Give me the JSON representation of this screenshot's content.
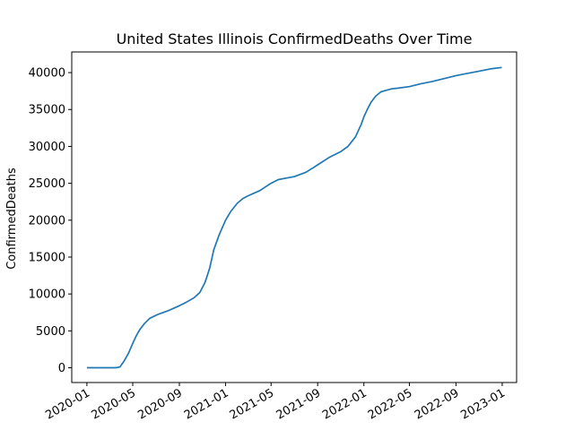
{
  "chart_data": {
    "type": "line",
    "title": "United States Illinois ConfirmedDeaths Over Time",
    "xlabel": "",
    "ylabel": "ConfirmedDeaths",
    "grid": false,
    "xlim": [
      "2019-11-22",
      "2023-02-08"
    ],
    "ylim": [
      -2000,
      42800
    ],
    "x_ticks": [
      "2020-01-01",
      "2020-05-01",
      "2020-09-01",
      "2021-01-01",
      "2021-05-01",
      "2021-09-01",
      "2022-01-01",
      "2022-05-01",
      "2022-09-01",
      "2023-01-01"
    ],
    "x_tick_labels": [
      "2020-01",
      "2020-05",
      "2020-09",
      "2021-01",
      "2021-05",
      "2021-09",
      "2022-01",
      "2022-05",
      "2022-09",
      "2023-01"
    ],
    "x_tick_rotation_deg": 30,
    "y_ticks": [
      0,
      5000,
      10000,
      15000,
      20000,
      25000,
      30000,
      35000,
      40000
    ],
    "y_tick_labels": [
      "0",
      "5000",
      "10000",
      "15000",
      "20000",
      "25000",
      "30000",
      "35000",
      "40000"
    ],
    "line_color": "#1f77b4",
    "series": [
      {
        "x": [
          "2020-01-01",
          "2020-02-15",
          "2020-03-17",
          "2020-03-28",
          "2020-04-08",
          "2020-04-20",
          "2020-05-01",
          "2020-05-10",
          "2020-05-20",
          "2020-06-01",
          "2020-06-15",
          "2020-07-01",
          "2020-07-10",
          "2020-08-01",
          "2020-09-01",
          "2020-09-20",
          "2020-10-10",
          "2020-10-25",
          "2020-11-08",
          "2020-11-20",
          "2020-12-01",
          "2020-12-15",
          "2021-01-01",
          "2021-01-15",
          "2021-02-01",
          "2021-02-15",
          "2021-03-01",
          "2021-04-01",
          "2021-05-01",
          "2021-05-20",
          "2021-06-10",
          "2021-07-01",
          "2021-08-01",
          "2021-08-20",
          "2021-09-01",
          "2021-10-01",
          "2021-11-01",
          "2021-11-20",
          "2021-12-10",
          "2021-12-25",
          "2022-01-01",
          "2022-01-10",
          "2022-01-20",
          "2022-02-01",
          "2022-02-15",
          "2022-03-01",
          "2022-03-15",
          "2022-04-01",
          "2022-05-01",
          "2022-06-01",
          "2022-07-01",
          "2022-08-01",
          "2022-09-01",
          "2022-10-01",
          "2022-11-01",
          "2022-12-01",
          "2022-12-31"
        ],
        "values": [
          0,
          0,
          0,
          100,
          900,
          2000,
          3300,
          4300,
          5200,
          6000,
          6700,
          7100,
          7300,
          7700,
          8400,
          8900,
          9500,
          10200,
          11600,
          13500,
          16000,
          18000,
          20000,
          21200,
          22300,
          22900,
          23300,
          24000,
          25000,
          25500,
          25700,
          25900,
          26500,
          27100,
          27500,
          28500,
          29300,
          30000,
          31300,
          33000,
          34000,
          35000,
          36000,
          36800,
          37400,
          37600,
          37800,
          37900,
          38100,
          38500,
          38800,
          39200,
          39600,
          39900,
          40200,
          40500,
          40700
        ]
      }
    ]
  }
}
